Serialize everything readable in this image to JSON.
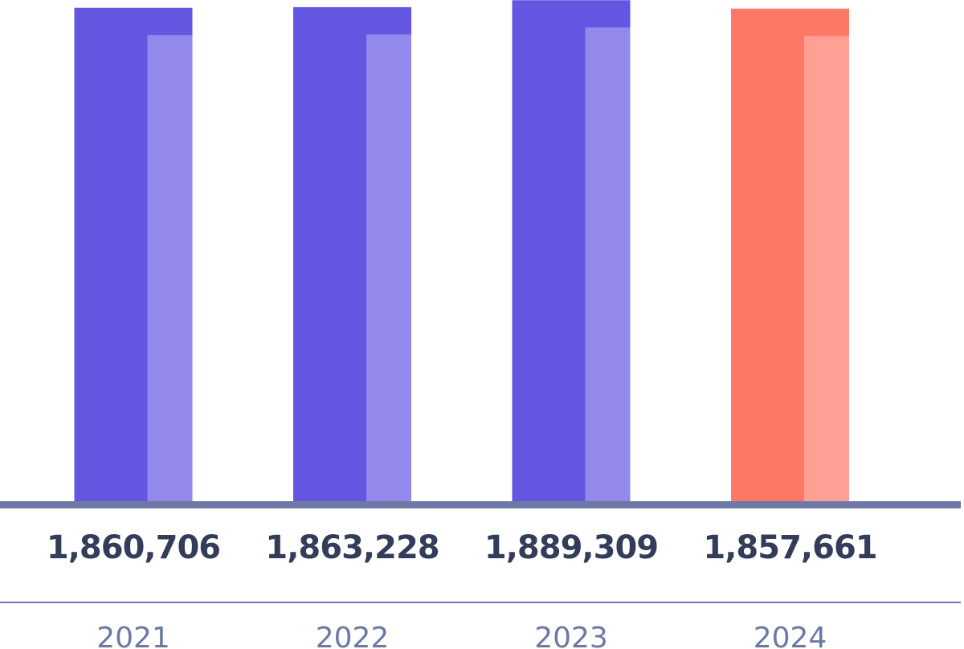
{
  "chart_data": {
    "type": "bar",
    "categories": [
      "2021",
      "2022",
      "2023",
      "2024"
    ],
    "values": [
      1860706,
      1863228,
      1889309,
      1857661
    ],
    "value_labels": [
      "1,860,706",
      "1,863,228",
      "1,889,309",
      "1,857,661"
    ],
    "colors": [
      "#6357e2",
      "#6357e2",
      "#6357e2",
      "#ff7866"
    ],
    "ylim": [
      0,
      1890000
    ]
  }
}
